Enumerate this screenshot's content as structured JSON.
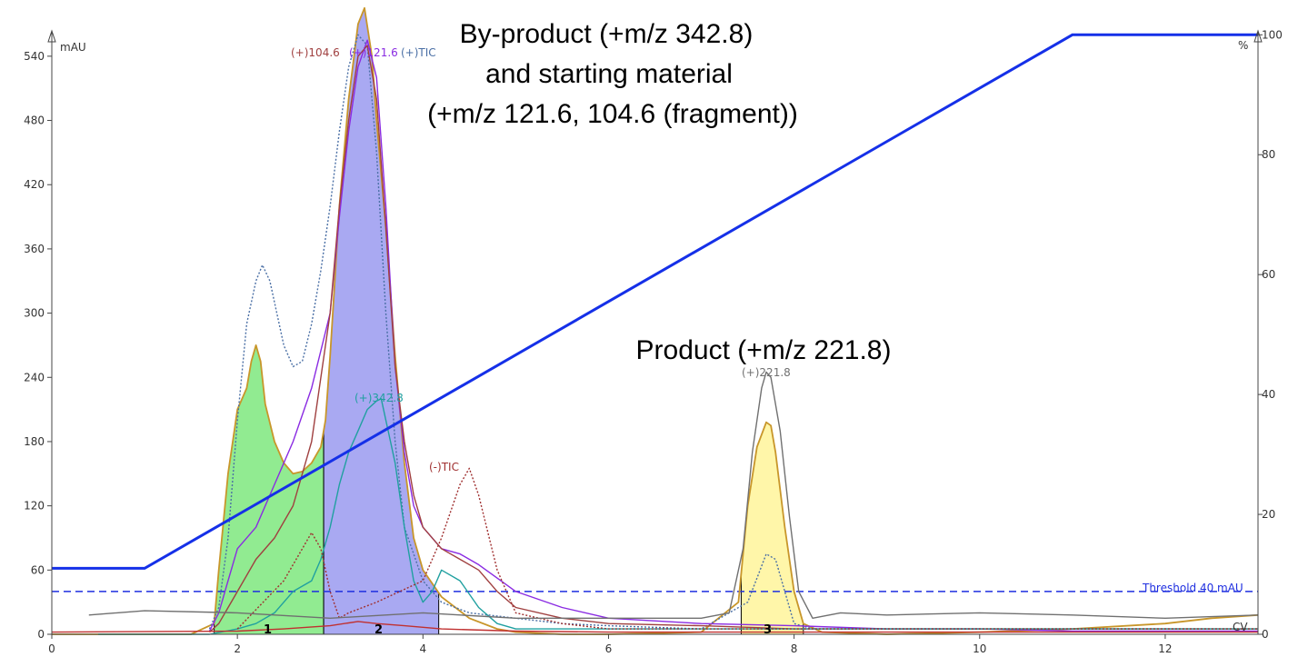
{
  "chart_data": {
    "type": "line",
    "x_axis": {
      "range": [
        0,
        13
      ],
      "ticks": [
        0,
        2,
        4,
        6,
        8,
        10,
        12
      ]
    },
    "y_left": {
      "unit": "mAU",
      "range": [
        0,
        560
      ],
      "ticks": [
        0,
        60,
        120,
        180,
        240,
        300,
        360,
        420,
        480,
        540
      ]
    },
    "y_right": {
      "unit": "%",
      "range": [
        0,
        100
      ],
      "ticks": [
        0,
        20,
        40,
        60,
        80,
        100
      ]
    },
    "grid": false,
    "threshold": {
      "label": "Threshold 40 mAU",
      "value": 40,
      "color": "#1f2fe0"
    },
    "cv_label": "CV",
    "annotations": {
      "byproduct": [
        "By-product (+m/z 342.8)",
        "and starting material",
        "(+m/z 121.6, 104.6 (fragment))"
      ],
      "product": "Product (+m/z 221.8)"
    },
    "trace_labels": [
      {
        "id": "mz104",
        "text": "(+)104.6",
        "color": "#a04040"
      },
      {
        "id": "mz121",
        "text": "(+)121.6",
        "color": "#8a2be2"
      },
      {
        "id": "tic_pos",
        "text": "(+)TIC",
        "color": "#4a6fa5"
      },
      {
        "id": "mz342",
        "text": "(+)342.8",
        "color": "#20a0a0"
      },
      {
        "id": "tic_neg",
        "text": "(-)TIC",
        "color": "#a03030"
      },
      {
        "id": "mz221",
        "text": "(+)221.8",
        "color": "#707070"
      }
    ],
    "peak_fractions": [
      {
        "label": "1",
        "x_start": 1.75,
        "x_end": 2.93,
        "color": "#7ee87e"
      },
      {
        "label": "2",
        "x_start": 2.93,
        "x_end": 4.17,
        "color": "#9a9af0"
      },
      {
        "label": "3",
        "x_start": 7.43,
        "x_end": 8.1,
        "color": "#fff59a"
      }
    ],
    "gradient": {
      "color": "#1530e8",
      "x": [
        0,
        1.0,
        11.0,
        13.0
      ],
      "y": [
        11,
        11,
        100,
        100
      ]
    },
    "series": [
      {
        "name": "UV",
        "color": "#c8962a",
        "x": [
          0,
          1.5,
          1.75,
          1.8,
          1.9,
          2.0,
          2.1,
          2.15,
          2.2,
          2.25,
          2.3,
          2.4,
          2.5,
          2.6,
          2.7,
          2.8,
          2.9,
          2.95,
          3.0,
          3.1,
          3.2,
          3.3,
          3.37,
          3.45,
          3.5,
          3.6,
          3.7,
          3.8,
          3.9,
          4.0,
          4.2,
          4.5,
          4.8,
          5.0,
          5.5,
          6.0,
          7.0,
          7.4,
          7.5,
          7.6,
          7.7,
          7.75,
          7.8,
          7.9,
          8.0,
          8.1,
          8.3,
          9.0,
          10.0,
          11.0,
          12.0,
          12.5,
          13.0
        ],
        "y": [
          0,
          0,
          10,
          60,
          150,
          210,
          230,
          255,
          270,
          255,
          215,
          180,
          160,
          150,
          152,
          160,
          175,
          200,
          260,
          400,
          500,
          570,
          585,
          540,
          480,
          380,
          260,
          160,
          90,
          60,
          35,
          15,
          5,
          2,
          0,
          0,
          2,
          30,
          120,
          175,
          198,
          195,
          170,
          100,
          40,
          10,
          2,
          0,
          2,
          5,
          10,
          15,
          18
        ]
      },
      {
        "name": "(+)TIC",
        "color": "#4a6fa5",
        "dashed": true,
        "x": [
          1.7,
          1.8,
          1.9,
          2.0,
          2.1,
          2.2,
          2.27,
          2.35,
          2.5,
          2.6,
          2.7,
          2.8,
          2.9,
          3.0,
          3.1,
          3.2,
          3.3,
          3.4,
          3.5,
          3.6,
          3.7,
          3.8,
          4.0,
          4.2,
          4.5,
          5.0,
          5.5,
          6.0,
          7.0,
          7.5,
          7.7,
          7.8,
          7.9,
          8.0,
          8.2,
          9.0,
          11.0,
          13.0
        ],
        "y": [
          5,
          25,
          90,
          200,
          290,
          330,
          345,
          330,
          270,
          250,
          255,
          290,
          340,
          400,
          470,
          530,
          560,
          550,
          450,
          300,
          180,
          100,
          50,
          30,
          20,
          15,
          10,
          8,
          5,
          30,
          75,
          70,
          40,
          10,
          5,
          5,
          5,
          5
        ]
      },
      {
        "name": "(+)121.6",
        "color": "#8a2be2",
        "x": [
          1.7,
          1.8,
          1.9,
          2.0,
          2.2,
          2.4,
          2.6,
          2.8,
          3.0,
          3.1,
          3.2,
          3.3,
          3.4,
          3.5,
          3.6,
          3.7,
          3.8,
          3.9,
          4.0,
          4.2,
          4.4,
          4.6,
          5.0,
          5.5,
          6.0,
          7.0,
          8.0,
          9.0,
          10.0,
          11.0,
          12.0,
          13.0
        ],
        "y": [
          3,
          20,
          50,
          80,
          100,
          140,
          180,
          230,
          300,
          390,
          470,
          530,
          555,
          520,
          400,
          250,
          170,
          120,
          100,
          80,
          75,
          65,
          40,
          25,
          15,
          10,
          8,
          5,
          5,
          3,
          3,
          3
        ]
      },
      {
        "name": "(+)104.6",
        "color": "#a04040",
        "x": [
          1.7,
          1.8,
          2.0,
          2.2,
          2.4,
          2.6,
          2.8,
          3.0,
          3.1,
          3.2,
          3.3,
          3.4,
          3.5,
          3.6,
          3.7,
          3.8,
          3.9,
          4.0,
          4.2,
          4.4,
          4.6,
          4.8,
          5.0,
          5.5,
          6.0,
          7.0,
          8.0,
          10.0,
          13.0
        ],
        "y": [
          2,
          10,
          40,
          70,
          90,
          120,
          180,
          300,
          400,
          480,
          540,
          550,
          500,
          380,
          250,
          180,
          130,
          100,
          80,
          70,
          60,
          40,
          25,
          15,
          10,
          8,
          5,
          5,
          5
        ]
      },
      {
        "name": "(+)342.8",
        "color": "#20a0a0",
        "x": [
          0.5,
          1.7,
          2.0,
          2.2,
          2.4,
          2.6,
          2.8,
          2.9,
          3.0,
          3.1,
          3.2,
          3.3,
          3.4,
          3.5,
          3.55,
          3.6,
          3.7,
          3.8,
          3.9,
          4.0,
          4.1,
          4.2,
          4.4,
          4.6,
          4.8,
          5.0,
          6.0,
          7.0,
          8.0,
          9.0,
          10.0,
          13.0
        ],
        "y": [
          0,
          0,
          5,
          10,
          20,
          40,
          50,
          70,
          100,
          140,
          170,
          190,
          210,
          218,
          220,
          200,
          160,
          100,
          50,
          30,
          40,
          60,
          50,
          25,
          10,
          5,
          5,
          5,
          5,
          5,
          5,
          5
        ]
      },
      {
        "name": "(-)TIC",
        "color": "#a03030",
        "dashed": true,
        "x": [
          2.0,
          2.5,
          2.7,
          2.8,
          2.9,
          3.0,
          3.1,
          3.2,
          3.5,
          4.0,
          4.2,
          4.4,
          4.5,
          4.6,
          4.8,
          5.0,
          5.5,
          6.0,
          8.0,
          13.0
        ],
        "y": [
          5,
          50,
          80,
          95,
          80,
          40,
          15,
          20,
          30,
          50,
          90,
          140,
          155,
          130,
          60,
          20,
          10,
          5,
          5,
          5
        ]
      },
      {
        "name": "(+)221.8",
        "color": "#707070",
        "x": [
          0.4,
          1.0,
          2.0,
          3.0,
          4.0,
          5.0,
          6.0,
          7.0,
          7.3,
          7.45,
          7.55,
          7.65,
          7.7,
          7.75,
          7.85,
          7.95,
          8.05,
          8.2,
          8.5,
          9.0,
          10.0,
          11.0,
          12.0,
          13.0
        ],
        "y": [
          18,
          22,
          20,
          15,
          20,
          15,
          15,
          15,
          20,
          80,
          170,
          230,
          245,
          240,
          190,
          110,
          40,
          15,
          20,
          18,
          20,
          18,
          15,
          18
        ]
      },
      {
        "name": "baseline",
        "color": "#c03030",
        "x": [
          0,
          2.0,
          2.5,
          3.0,
          3.3,
          3.5,
          3.8,
          4.2,
          5.0,
          6.0,
          8.0,
          10.0,
          13.0
        ],
        "y": [
          2,
          3,
          5,
          8,
          12,
          10,
          8,
          5,
          3,
          2,
          2,
          2,
          2
        ]
      }
    ]
  }
}
